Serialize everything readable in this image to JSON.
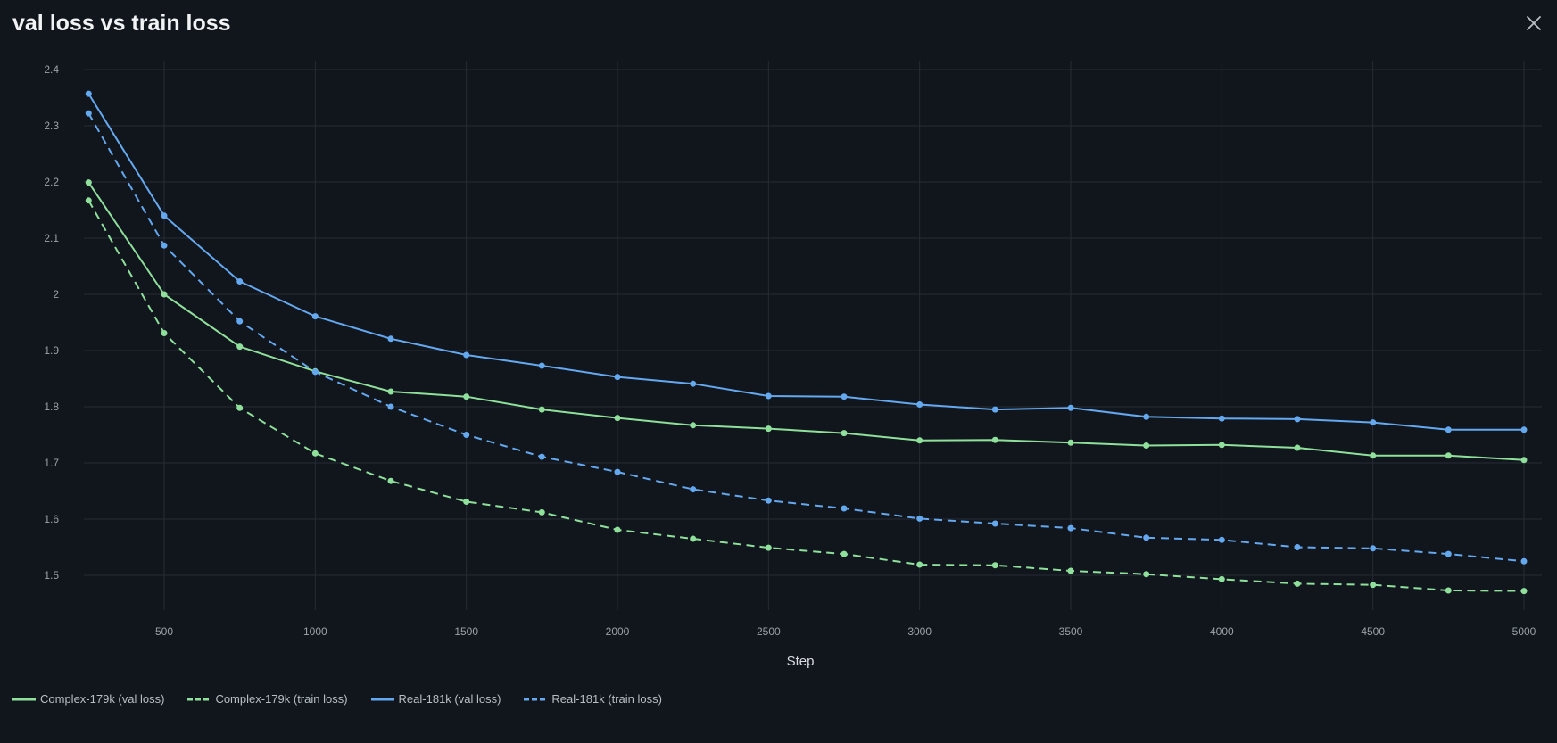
{
  "header": {
    "title": "val loss vs train loss"
  },
  "icons": {
    "close": "close-icon"
  },
  "colors": {
    "background": "#11161d",
    "grid": "#262c35",
    "axis_text": "#9aa1a9",
    "complex": "#8fe09b",
    "real": "#64a8f0"
  },
  "chart_data": {
    "type": "line",
    "title": "val loss vs train loss",
    "xlabel": "Step",
    "ylabel": "",
    "xlim": [
      250,
      5050
    ],
    "ylim": [
      1.42,
      2.415
    ],
    "xticks": [
      500,
      1000,
      1500,
      2000,
      2500,
      3000,
      3500,
      4000,
      4500,
      5000
    ],
    "yticks": [
      1.5,
      1.6,
      1.7,
      1.8,
      1.9,
      2,
      2.1,
      2.2,
      2.3,
      2.4
    ],
    "ytick_labels": [
      "1.5",
      "1.6",
      "1.7",
      "1.8",
      "1.9",
      "2",
      "2.1",
      "2.2",
      "2.3",
      "2.4"
    ],
    "grid": true,
    "legend_position": "bottom-left",
    "x": [
      250,
      500,
      750,
      1000,
      1250,
      1500,
      1750,
      2000,
      2250,
      2500,
      2750,
      3000,
      3250,
      3500,
      3750,
      4000,
      4250,
      4500,
      4750,
      5000
    ],
    "series": [
      {
        "name": "Complex-179k (val loss)",
        "style": "solid",
        "color": "#8fe09b",
        "values": [
          2.199,
          2.0,
          1.907,
          1.863,
          1.827,
          1.818,
          1.795,
          1.78,
          1.767,
          1.761,
          1.753,
          1.74,
          1.741,
          1.736,
          1.731,
          1.732,
          1.727,
          1.713,
          1.713,
          1.705
        ]
      },
      {
        "name": "Complex-179k (train loss)",
        "style": "dashed",
        "color": "#8fe09b",
        "values": [
          2.167,
          1.931,
          1.798,
          1.717,
          1.668,
          1.631,
          1.612,
          1.581,
          1.565,
          1.549,
          1.538,
          1.519,
          1.518,
          1.508,
          1.502,
          1.493,
          1.485,
          1.483,
          1.473,
          1.472
        ]
      },
      {
        "name": "Real-181k (val loss)",
        "style": "solid",
        "color": "#64a8f0",
        "values": [
          2.357,
          2.14,
          2.023,
          1.961,
          1.921,
          1.892,
          1.873,
          1.853,
          1.841,
          1.819,
          1.818,
          1.804,
          1.795,
          1.798,
          1.782,
          1.779,
          1.778,
          1.772,
          1.759,
          1.759
        ]
      },
      {
        "name": "Real-181k (train loss)",
        "style": "dashed",
        "color": "#64a8f0",
        "values": [
          2.322,
          2.087,
          1.952,
          1.862,
          1.8,
          1.75,
          1.711,
          1.684,
          1.653,
          1.633,
          1.619,
          1.601,
          1.592,
          1.584,
          1.567,
          1.563,
          1.55,
          1.548,
          1.538,
          1.525
        ]
      }
    ]
  },
  "legend": {
    "items": [
      {
        "label": "Complex-179k (val loss)"
      },
      {
        "label": "Complex-179k (train loss)"
      },
      {
        "label": "Real-181k (val loss)"
      },
      {
        "label": "Real-181k (train loss)"
      }
    ]
  }
}
